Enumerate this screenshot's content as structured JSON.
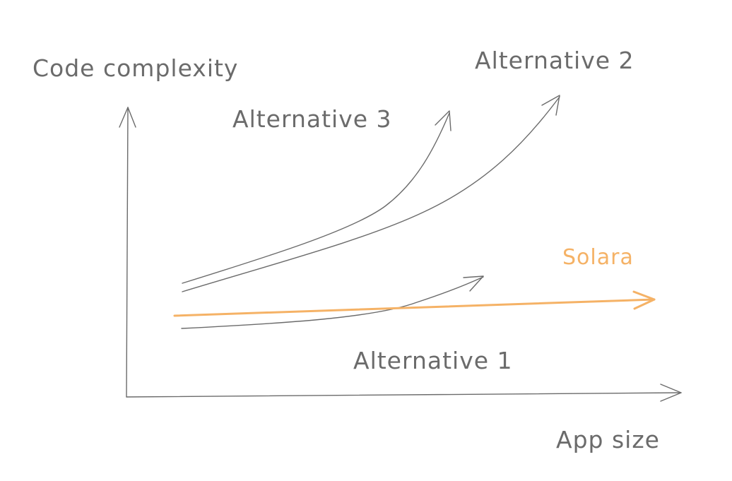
{
  "axes": {
    "y_label": "Code complexity",
    "x_label": "App size"
  },
  "curves": [
    {
      "id": "alternative-3",
      "label": "Alternative 3",
      "trend": "rapid exponential growth"
    },
    {
      "id": "alternative-2",
      "label": "Alternative 2",
      "trend": "steady exponential growth"
    },
    {
      "id": "alternative-1",
      "label": "Alternative 1",
      "trend": "slow growth"
    },
    {
      "id": "solara",
      "label": "Solara",
      "trend": "nearly flat",
      "highlight": true
    }
  ],
  "colors": {
    "ink": "#6b6b6b",
    "solara": "#f5b266"
  }
}
